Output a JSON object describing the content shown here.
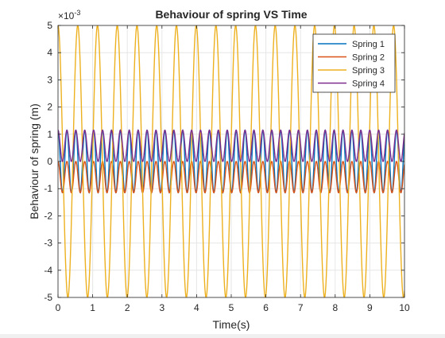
{
  "chart_data": {
    "type": "line",
    "title": "Behaviour of spring VS Time",
    "xlabel": "Time(s)",
    "ylabel": "Behaviour of spring (m)",
    "y_exponent_label": "×10",
    "y_exponent_power": "-3",
    "xlim": [
      0,
      10
    ],
    "ylim": [
      -5,
      5
    ],
    "x_ticks": [
      0,
      1,
      2,
      3,
      4,
      5,
      6,
      7,
      8,
      9,
      10
    ],
    "y_ticks": [
      -5,
      -4,
      -3,
      -2,
      -1,
      0,
      1,
      2,
      3,
      4,
      5
    ],
    "grid": true,
    "legend_position": "top-right",
    "series": [
      {
        "name": "Spring 1",
        "color": "#0072BD",
        "amplitude": 1.15,
        "offset": 0,
        "frequency_hz": 3.89,
        "phase": 0
      },
      {
        "name": "Spring 2",
        "color": "#D95319",
        "amplitude": 0.575,
        "offset": -0.575,
        "frequency_hz": 3.89,
        "phase": 0
      },
      {
        "name": "Spring 3",
        "color": "#EDB120",
        "amplitude": 5,
        "offset": 0,
        "frequency_hz": 1.755,
        "phase": 0
      },
      {
        "name": "Spring 4",
        "color": "#7E2F8E",
        "amplitude": 0.575,
        "offset": 0.575,
        "frequency_hz": 3.89,
        "phase": 0
      }
    ]
  }
}
